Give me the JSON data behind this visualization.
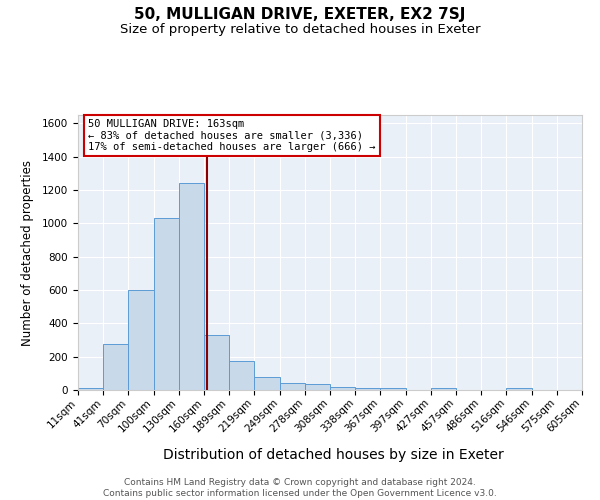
{
  "title": "50, MULLIGAN DRIVE, EXETER, EX2 7SJ",
  "subtitle": "Size of property relative to detached houses in Exeter",
  "xlabel": "Distribution of detached houses by size in Exeter",
  "ylabel": "Number of detached properties",
  "footer_line1": "Contains HM Land Registry data © Crown copyright and database right 2024.",
  "footer_line2": "Contains public sector information licensed under the Open Government Licence v3.0.",
  "annotation_title": "50 MULLIGAN DRIVE: 163sqm",
  "annotation_line1": "← 83% of detached houses are smaller (3,336)",
  "annotation_line2": "17% of semi-detached houses are larger (666) →",
  "bar_edges": [
    11,
    41,
    70,
    100,
    130,
    160,
    189,
    219,
    249,
    278,
    308,
    338,
    367,
    397,
    427,
    457,
    486,
    516,
    546,
    575,
    605
  ],
  "bar_heights": [
    10,
    275,
    600,
    1035,
    1240,
    330,
    175,
    80,
    45,
    35,
    20,
    15,
    15,
    0,
    15,
    0,
    0,
    15,
    0,
    0,
    0
  ],
  "bar_color": "#c8d9ea",
  "bar_edge_color": "#5b9bd5",
  "vline_color": "#8b0000",
  "vline_x": 163,
  "ylim": [
    0,
    1650
  ],
  "yticks": [
    0,
    200,
    400,
    600,
    800,
    1000,
    1200,
    1400,
    1600
  ],
  "bg_color": "#eaf0f8",
  "grid_color": "#ffffff",
  "annotation_box_color": "#ffffff",
  "annotation_border_color": "#cc0000",
  "title_fontsize": 11,
  "subtitle_fontsize": 9.5,
  "xlabel_fontsize": 10,
  "ylabel_fontsize": 8.5,
  "tick_fontsize": 7.5,
  "footer_fontsize": 6.5
}
